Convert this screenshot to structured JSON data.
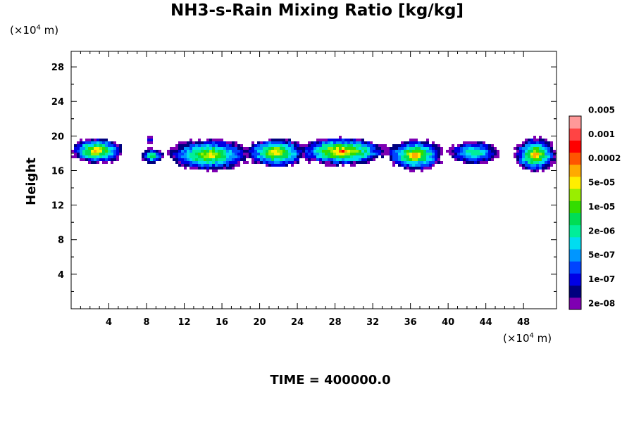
{
  "chart_data": {
    "type": "heatmap",
    "title": "NH3-s-Rain Mixing Ratio [kg/kg]",
    "ylabel": "Height",
    "xlabel": "",
    "x_unit": "(×10⁴ m)",
    "y_unit": "(×10⁴ m)",
    "xlim": [
      0,
      51.5
    ],
    "ylim": [
      0,
      29.8
    ],
    "x_ticks": [
      4,
      8,
      12,
      16,
      20,
      24,
      28,
      32,
      36,
      40,
      44,
      48
    ],
    "y_ticks": [
      4,
      8,
      12,
      16,
      20,
      24,
      28
    ],
    "footer": "TIME = 400000.0",
    "colorbar": {
      "colors": [
        "#7f00b2",
        "#00007f",
        "#0000e5",
        "#0044ff",
        "#0096ff",
        "#00ddf0",
        "#00ee99",
        "#00dd55",
        "#33dd00",
        "#99ee00",
        "#ffee00",
        "#ffaa00",
        "#ff5500",
        "#ff0000",
        "#ff4444",
        "#ff9999"
      ],
      "labels": [
        "2e-08",
        "1e-07",
        "5e-07",
        "2e-06",
        "1e-05",
        "5e-05",
        "0.0002",
        "0.001",
        "0.005"
      ]
    },
    "regions": [
      {
        "x": [
          0,
          5.5
        ],
        "y": [
          16.8,
          19.8
        ],
        "peak": 11
      },
      {
        "x": [
          7.5,
          9.8
        ],
        "y": [
          16.8,
          18.6
        ],
        "peak": 8
      },
      {
        "x": [
          8.0,
          8.8
        ],
        "y": [
          19.1,
          19.9
        ],
        "peak": 3
      },
      {
        "x": [
          10.2,
          19.0
        ],
        "y": [
          16.0,
          19.6
        ],
        "peak": 10
      },
      {
        "x": [
          18.5,
          25.0
        ],
        "y": [
          16.4,
          19.7
        ],
        "peak": 11
      },
      {
        "x": [
          24.0,
          33.5
        ],
        "y": [
          16.6,
          19.8
        ],
        "peak": 12
      },
      {
        "x": [
          33.5,
          39.5
        ],
        "y": [
          16.0,
          19.6
        ],
        "peak": 11
      },
      {
        "x": [
          40.0,
          45.5
        ],
        "y": [
          16.7,
          19.4
        ],
        "peak": 7
      },
      {
        "x": [
          47.0,
          51.5
        ],
        "y": [
          15.8,
          19.8
        ],
        "peak": 11
      }
    ]
  }
}
